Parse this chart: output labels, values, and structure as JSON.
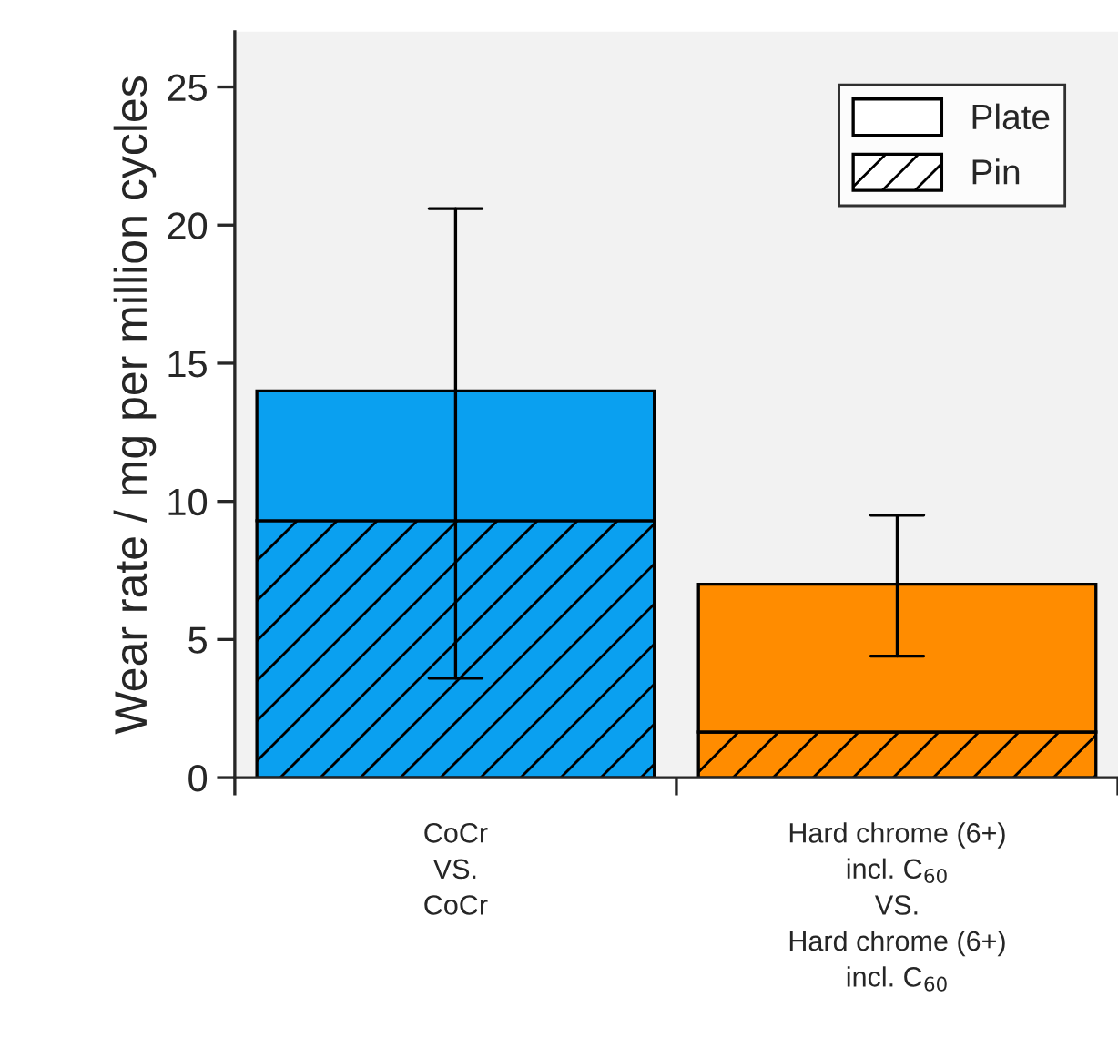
{
  "chart_data": {
    "type": "bar",
    "stacked": true,
    "ylabel": "Wear rate / mg per million cycles",
    "categories": [
      "CoCr\nVS.\nCoCr",
      "Hard chrome (6+)\nincl. C$_{60}$\nVS.\nHard chrome (6+)\nincl. C$_{60}$"
    ],
    "series": [
      {
        "name": "Pin",
        "colors": [
          "#0aa0f0",
          "#ff8c00"
        ],
        "values": [
          9.3,
          1.65
        ]
      },
      {
        "name": "Plate",
        "colors": [
          "#0aa0f0",
          "#ff8c00"
        ],
        "values": [
          4.7,
          5.35
        ],
        "errors": [
          [
            3.6,
            20.6
          ],
          [
            4.4,
            9.5
          ]
        ]
      }
    ],
    "ylim": [
      0,
      27
    ],
    "yticks": [
      0,
      5,
      10,
      15,
      20,
      25
    ],
    "legend": "top right",
    "grid": false
  }
}
